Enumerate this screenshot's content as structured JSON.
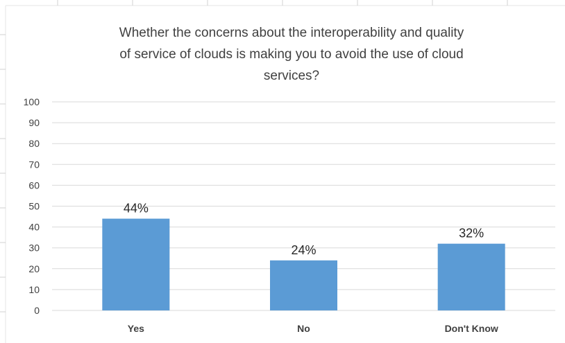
{
  "chart_data": {
    "type": "bar",
    "title_lines": [
      "Whether the concerns about the interoperability and quality",
      "of service of clouds is making you to avoid the use of cloud",
      "services?"
    ],
    "categories": [
      "Yes",
      "No",
      "Don't Know"
    ],
    "values": [
      44,
      24,
      32
    ],
    "data_labels": [
      "44%",
      "24%",
      "32%"
    ],
    "ylim": [
      0,
      100
    ],
    "yticks": [
      0,
      10,
      20,
      30,
      40,
      50,
      60,
      70,
      80,
      90,
      100
    ],
    "ytick_labels": [
      "0",
      "10",
      "20",
      "30",
      "40",
      "50",
      "60",
      "70",
      "80",
      "90",
      "100"
    ],
    "grid": true,
    "legend": "none",
    "bar_color": "#5b9bd5",
    "grid_color": "#d9d9d9",
    "text_color": "#404040"
  }
}
